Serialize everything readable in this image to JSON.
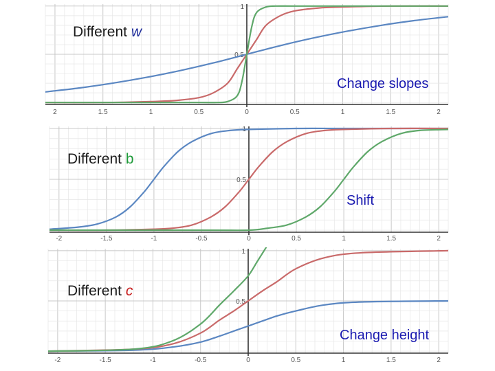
{
  "slide": {
    "background": "#ffffff"
  },
  "colors": {
    "blue": "#5b87c2",
    "red": "#c96a6a",
    "green": "#5fa86a",
    "title_text": "#1a1a1a",
    "w_symbol": "#1f2d9a",
    "b_symbol": "#1f9a3a",
    "c_symbol": "#c81e1e",
    "note_text": "#1a1ab0",
    "minor_grid": "#e6e6e6",
    "major_grid": "#c8c8c8",
    "axis": "#333333"
  },
  "chart_data": [
    {
      "type": "line",
      "title_prefix": "Different",
      "title_symbol": "w",
      "annotation": "Change slopes",
      "xlim": [
        -2.1,
        2.1
      ],
      "ylim": [
        -0.02,
        1.02
      ],
      "x_ticks": [
        "2",
        "1.5",
        "1",
        "0.5",
        "0",
        "0.5",
        "1",
        "1.5",
        "2"
      ],
      "y_ticks": [
        "0.5",
        "1"
      ],
      "grid": true,
      "series": [
        {
          "color": "blue",
          "x": [
            -2.1,
            -1.75,
            -1.4,
            -1.05,
            -0.7,
            -0.35,
            0,
            0.35,
            0.7,
            1.05,
            1.4,
            1.75,
            2.1
          ],
          "y": [
            0.11,
            0.15,
            0.2,
            0.26,
            0.33,
            0.41,
            0.5,
            0.59,
            0.67,
            0.74,
            0.8,
            0.85,
            0.89
          ]
        },
        {
          "color": "red",
          "x": [
            -2.1,
            -1.5,
            -1.0,
            -0.75,
            -0.5,
            -0.35,
            -0.2,
            -0.1,
            0,
            0.1,
            0.2,
            0.35,
            0.5,
            0.75,
            1.0,
            1.5,
            2.1
          ],
          "y": [
            0.0,
            0.0,
            0.01,
            0.02,
            0.05,
            0.1,
            0.2,
            0.35,
            0.5,
            0.65,
            0.8,
            0.9,
            0.95,
            0.98,
            0.99,
            1.0,
            1.0
          ]
        },
        {
          "color": "green",
          "x": [
            -2.1,
            -1.0,
            -0.5,
            -0.3,
            -0.2,
            -0.1,
            -0.05,
            0,
            0.05,
            0.1,
            0.2,
            0.3,
            0.5,
            1.0,
            2.1
          ],
          "y": [
            0.0,
            0.0,
            0.0,
            0.0,
            0.01,
            0.07,
            0.22,
            0.5,
            0.78,
            0.93,
            0.99,
            1.0,
            1.0,
            1.0,
            1.0
          ]
        }
      ]
    },
    {
      "type": "line",
      "title_prefix": "Different",
      "title_symbol": "b",
      "annotation": "Shift",
      "xlim": [
        -2.1,
        2.1
      ],
      "ylim": [
        -0.02,
        1.02
      ],
      "x_ticks": [
        "-2",
        "-1.5",
        "-1",
        "-0.5",
        "0",
        "0.5",
        "1",
        "1.5",
        "2"
      ],
      "y_ticks": [
        "0.5",
        "1"
      ],
      "grid": true,
      "series": [
        {
          "color": "blue",
          "x": [
            -2.1,
            -1.8,
            -1.6,
            -1.4,
            -1.25,
            -1.1,
            -1.0,
            -0.9,
            -0.75,
            -0.6,
            -0.4,
            -0.2,
            0,
            0.5,
            1.0,
            1.5,
            2.1
          ],
          "y": [
            0.01,
            0.03,
            0.06,
            0.13,
            0.23,
            0.38,
            0.5,
            0.62,
            0.77,
            0.87,
            0.95,
            0.98,
            0.99,
            1.0,
            1.0,
            1.0,
            1.0
          ]
        },
        {
          "color": "red",
          "x": [
            -2.1,
            -1.5,
            -1.0,
            -0.8,
            -0.6,
            -0.4,
            -0.25,
            -0.1,
            0,
            0.1,
            0.25,
            0.4,
            0.6,
            0.8,
            1.0,
            1.5,
            2.1
          ],
          "y": [
            0.0,
            0.0,
            0.01,
            0.02,
            0.05,
            0.13,
            0.23,
            0.38,
            0.5,
            0.62,
            0.77,
            0.87,
            0.95,
            0.98,
            0.99,
            1.0,
            1.0
          ]
        },
        {
          "color": "green",
          "x": [
            -2.1,
            -0.5,
            0,
            0.2,
            0.4,
            0.6,
            0.75,
            0.9,
            1.0,
            1.1,
            1.25,
            1.4,
            1.6,
            1.8,
            2.1
          ],
          "y": [
            0.0,
            0.0,
            0.0,
            0.02,
            0.05,
            0.13,
            0.23,
            0.38,
            0.5,
            0.62,
            0.77,
            0.87,
            0.95,
            0.98,
            0.99
          ]
        }
      ]
    },
    {
      "type": "line",
      "title_prefix": "Different",
      "title_symbol": "c",
      "annotation": "Change height",
      "xlim": [
        -2.1,
        2.1
      ],
      "ylim": [
        -0.02,
        1.02
      ],
      "x_ticks": [
        "-2",
        "-1.5",
        "-1",
        "-0.5",
        "0",
        "0.5",
        "1",
        "1.5",
        "2"
      ],
      "y_ticks": [
        "0.5",
        "1"
      ],
      "grid": true,
      "series": [
        {
          "color": "blue",
          "x": [
            -2.1,
            -1.2,
            -0.8,
            -0.5,
            -0.3,
            -0.15,
            0,
            0.15,
            0.3,
            0.5,
            0.8,
            1.2,
            2.1
          ],
          "y": [
            0.0,
            0.01,
            0.04,
            0.09,
            0.15,
            0.2,
            0.25,
            0.3,
            0.35,
            0.4,
            0.46,
            0.49,
            0.5
          ]
        },
        {
          "color": "red",
          "x": [
            -2.1,
            -1.2,
            -0.8,
            -0.5,
            -0.3,
            -0.15,
            0,
            0.15,
            0.3,
            0.5,
            0.8,
            1.2,
            2.1
          ],
          "y": [
            0.0,
            0.02,
            0.07,
            0.18,
            0.31,
            0.4,
            0.5,
            0.6,
            0.69,
            0.82,
            0.93,
            0.98,
            1.0
          ]
        },
        {
          "color": "green",
          "x": [
            -2.1,
            -1.2,
            -0.8,
            -0.5,
            -0.3,
            -0.15,
            0,
            0.1,
            0.2
          ],
          "y": [
            0.0,
            0.02,
            0.1,
            0.27,
            0.46,
            0.6,
            0.75,
            0.9,
            1.05
          ]
        }
      ]
    }
  ]
}
